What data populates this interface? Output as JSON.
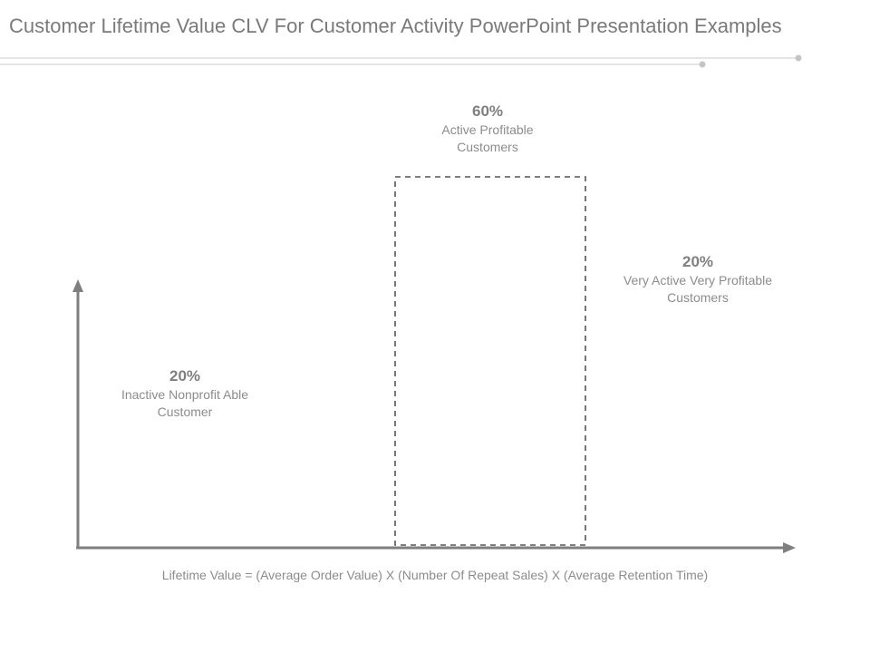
{
  "title": "Customer Lifetime Value CLV For Customer Activity PowerPoint Presentation Examples",
  "segments": [
    {
      "percent": "20%",
      "label": "Inactive Nonprofit Able Customer",
      "color": "#D4B477"
    },
    {
      "percent": "60%",
      "label": "Active Profitable Customers",
      "color": "#D65A43"
    },
    {
      "percent": "20%",
      "label": "Very Active Very Profitable Customers",
      "color": "#B84B4A"
    }
  ],
  "formula": "Lifetime Value = (Average Order Value) X (Number Of Repeat Sales) X (Average Retention Time)",
  "colors": {
    "title": "#7A7A7A",
    "axis": "#7F7F7F",
    "divider": "#D0D0D0"
  }
}
